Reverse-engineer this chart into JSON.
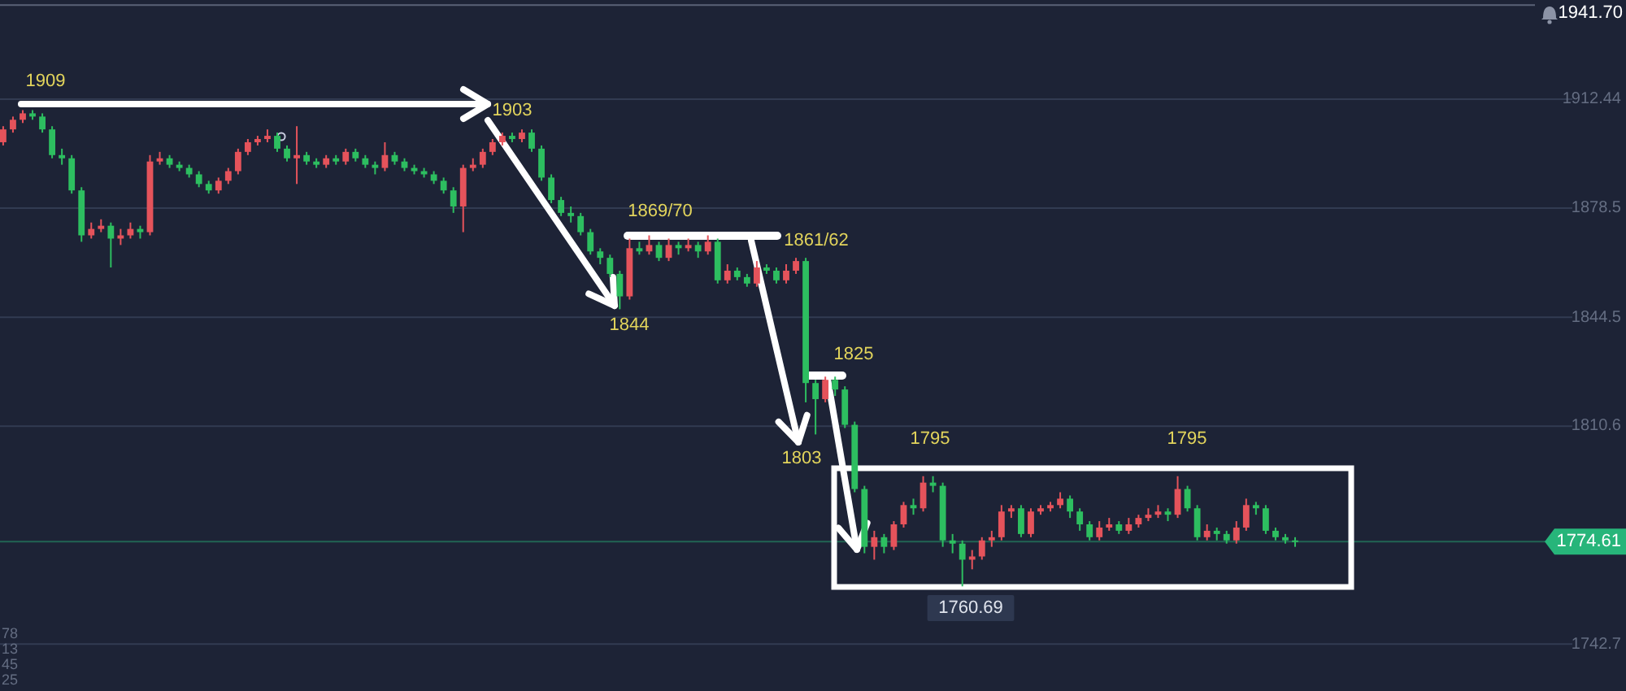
{
  "chart_data": {
    "type": "candlestick",
    "categories": [
      null,
      null,
      null,
      null,
      null,
      null,
      null,
      null,
      null,
      null,
      null,
      null,
      null,
      null,
      null,
      null,
      null,
      null,
      null,
      null,
      null,
      null,
      null,
      null,
      null,
      null,
      null,
      null,
      null,
      null,
      null,
      null,
      null,
      null,
      null,
      null,
      null,
      null,
      null,
      null,
      null,
      null,
      null,
      null,
      null,
      null,
      null,
      null,
      null,
      null,
      null,
      null,
      null,
      null,
      null,
      null,
      null,
      null,
      null,
      null,
      null,
      null,
      null,
      null,
      null,
      null,
      null,
      null,
      null,
      null,
      null,
      null,
      null,
      null,
      null,
      null,
      null,
      null,
      null,
      null,
      null,
      null,
      null,
      null,
      null,
      null,
      null,
      null,
      null,
      null,
      null,
      null,
      null,
      null,
      null,
      null,
      null,
      null,
      null,
      null,
      null,
      null,
      null,
      null,
      null,
      null,
      null,
      null,
      null,
      null,
      null,
      null,
      null,
      null,
      null,
      null,
      null,
      null,
      null,
      null,
      null,
      null,
      null,
      null,
      null,
      null,
      null,
      null,
      null,
      null,
      null,
      null,
      null,
      null,
      null,
      null,
      null,
      null,
      null,
      null,
      null,
      null,
      null,
      null,
      null,
      null,
      null,
      null,
      null,
      null,
      null,
      null,
      null,
      null,
      null,
      null,
      null,
      null,
      null,
      null,
      null
    ],
    "ohlc": [
      [
        1899,
        1904,
        1898,
        1903
      ],
      [
        1903,
        1907,
        1902,
        1906
      ],
      [
        1906,
        1909,
        1905,
        1908
      ],
      [
        1908,
        1909,
        1906,
        1907
      ],
      [
        1907,
        1908,
        1902,
        1903
      ],
      [
        1903,
        1904,
        1894,
        1895
      ],
      [
        1895,
        1897,
        1892,
        1894
      ],
      [
        1894,
        1895,
        1883,
        1884
      ],
      [
        1884,
        1885,
        1868,
        1870
      ],
      [
        1870,
        1874,
        1869,
        1872
      ],
      [
        1872,
        1875,
        1871,
        1873
      ],
      [
        1873,
        1874,
        1860,
        1869
      ],
      [
        1869,
        1872,
        1867,
        1870
      ],
      [
        1870,
        1874,
        1869,
        1872
      ],
      [
        1872,
        1873,
        1869,
        1871
      ],
      [
        1871,
        1895,
        1870,
        1893
      ],
      [
        1893,
        1896,
        1892,
        1894
      ],
      [
        1894,
        1895,
        1891,
        1892
      ],
      [
        1892,
        1893,
        1890,
        1891
      ],
      [
        1891,
        1892,
        1888,
        1889
      ],
      [
        1889,
        1890,
        1885,
        1886
      ],
      [
        1886,
        1887,
        1883,
        1884
      ],
      [
        1884,
        1888,
        1883,
        1887
      ],
      [
        1887,
        1891,
        1886,
        1890
      ],
      [
        1890,
        1897,
        1889,
        1896
      ],
      [
        1896,
        1900,
        1895,
        1899
      ],
      [
        1899,
        1901,
        1898,
        1900
      ],
      [
        1900,
        1903,
        1899,
        1901
      ],
      [
        1901,
        1902,
        1896,
        1897
      ],
      [
        1897,
        1898,
        1893,
        1894
      ],
      [
        1894,
        1904,
        1886,
        1895
      ],
      [
        1895,
        1896,
        1892,
        1893
      ],
      [
        1893,
        1894,
        1891,
        1892
      ],
      [
        1892,
        1895,
        1891,
        1894
      ],
      [
        1894,
        1895,
        1892,
        1893
      ],
      [
        1893,
        1897,
        1892,
        1896
      ],
      [
        1896,
        1897,
        1893,
        1894
      ],
      [
        1894,
        1895,
        1891,
        1892
      ],
      [
        1892,
        1893,
        1889,
        1891
      ],
      [
        1891,
        1899,
        1890,
        1895
      ],
      [
        1895,
        1896,
        1892,
        1893
      ],
      [
        1893,
        1894,
        1890,
        1891
      ],
      [
        1891,
        1892,
        1889,
        1890
      ],
      [
        1890,
        1891,
        1888,
        1889
      ],
      [
        1889,
        1890,
        1886,
        1887
      ],
      [
        1887,
        1888,
        1883,
        1884
      ],
      [
        1884,
        1885,
        1877,
        1879
      ],
      [
        1879,
        1892,
        1871,
        1891
      ],
      [
        1891,
        1894,
        1890,
        1892
      ],
      [
        1892,
        1897,
        1891,
        1896
      ],
      [
        1896,
        1900,
        1895,
        1899
      ],
      [
        1899,
        1902,
        1898,
        1901
      ],
      [
        1901,
        1902,
        1899,
        1900
      ],
      [
        1900,
        1903,
        1899,
        1902
      ],
      [
        1902,
        1903,
        1896,
        1897
      ],
      [
        1897,
        1898,
        1887,
        1888
      ],
      [
        1888,
        1889,
        1880,
        1881
      ],
      [
        1881,
        1882,
        1876,
        1877
      ],
      [
        1877,
        1879,
        1874,
        1876
      ],
      [
        1876,
        1877,
        1870,
        1871
      ],
      [
        1871,
        1872,
        1864,
        1865
      ],
      [
        1865,
        1866,
        1861,
        1863
      ],
      [
        1863,
        1864,
        1857,
        1858
      ],
      [
        1858,
        1859,
        1847,
        1851
      ],
      [
        1851,
        1869,
        1850,
        1866
      ],
      [
        1866,
        1868,
        1864,
        1865
      ],
      [
        1865,
        1870,
        1864,
        1867
      ],
      [
        1867,
        1868,
        1862,
        1863
      ],
      [
        1863,
        1869,
        1862,
        1867
      ],
      [
        1867,
        1868,
        1864,
        1866
      ],
      [
        1866,
        1869,
        1865,
        1867
      ],
      [
        1867,
        1868,
        1863,
        1865
      ],
      [
        1865,
        1870,
        1864,
        1868
      ],
      [
        1868,
        1869,
        1855,
        1856
      ],
      [
        1856,
        1861,
        1855,
        1859
      ],
      [
        1859,
        1860,
        1856,
        1857
      ],
      [
        1857,
        1858,
        1854,
        1855
      ],
      [
        1855,
        1862,
        1854,
        1860
      ],
      [
        1860,
        1861,
        1858,
        1859
      ],
      [
        1859,
        1860,
        1855,
        1856
      ],
      [
        1856,
        1861,
        1855,
        1859
      ],
      [
        1859,
        1863,
        1858,
        1862
      ],
      [
        1862,
        1863,
        1818,
        1824
      ],
      [
        1824,
        1825,
        1808,
        1819
      ],
      [
        1819,
        1826,
        1818,
        1825
      ],
      [
        1825,
        1826,
        1820,
        1822
      ],
      [
        1822,
        1823,
        1810,
        1811
      ],
      [
        1811,
        1812,
        1790,
        1791
      ],
      [
        1791,
        1792,
        1771,
        1773
      ],
      [
        1773,
        1778,
        1769,
        1776
      ],
      [
        1776,
        1777,
        1771,
        1773
      ],
      [
        1773,
        1781,
        1772,
        1780
      ],
      [
        1780,
        1787,
        1779,
        1786
      ],
      [
        1786,
        1788,
        1783,
        1785
      ],
      [
        1785,
        1795,
        1784,
        1793
      ],
      [
        1793,
        1795,
        1790,
        1792
      ],
      [
        1792,
        1793,
        1773,
        1775
      ],
      [
        1775,
        1777,
        1771,
        1774
      ],
      [
        1774,
        1775,
        1760.69,
        1769
      ],
      [
        1769,
        1772,
        1766,
        1770
      ],
      [
        1770,
        1776,
        1769,
        1775
      ],
      [
        1775,
        1778,
        1773,
        1776
      ],
      [
        1776,
        1786,
        1775,
        1784
      ],
      [
        1784,
        1786,
        1782,
        1785
      ],
      [
        1785,
        1786,
        1776,
        1777
      ],
      [
        1777,
        1785,
        1776,
        1784
      ],
      [
        1784,
        1786,
        1783,
        1785
      ],
      [
        1785,
        1787,
        1784,
        1786
      ],
      [
        1786,
        1790,
        1785,
        1788
      ],
      [
        1788,
        1789,
        1782,
        1784
      ],
      [
        1784,
        1785,
        1778,
        1780
      ],
      [
        1780,
        1781,
        1775,
        1776
      ],
      [
        1776,
        1781,
        1775,
        1779
      ],
      [
        1779,
        1782,
        1778,
        1780
      ],
      [
        1780,
        1781,
        1777,
        1778
      ],
      [
        1778,
        1782,
        1777,
        1780
      ],
      [
        1780,
        1783,
        1779,
        1782
      ],
      [
        1782,
        1785,
        1781,
        1783
      ],
      [
        1783,
        1786,
        1782,
        1784
      ],
      [
        1784,
        1785,
        1781,
        1783
      ],
      [
        1783,
        1795,
        1782,
        1791
      ],
      [
        1791,
        1792,
        1784,
        1785
      ],
      [
        1785,
        1786,
        1775,
        1776
      ],
      [
        1776,
        1780,
        1775,
        1778
      ],
      [
        1778,
        1779,
        1775,
        1777
      ],
      [
        1777,
        1778,
        1774,
        1775
      ],
      [
        1775,
        1781,
        1774,
        1779
      ],
      [
        1779,
        1788,
        1778,
        1786
      ],
      [
        1786,
        1787,
        1783,
        1785
      ],
      [
        1785,
        1786,
        1777,
        1778
      ],
      [
        1778,
        1779,
        1775,
        1776
      ],
      [
        1776,
        1777,
        1774,
        1775
      ],
      [
        1775,
        1776,
        1773,
        1774.61
      ],
      null,
      null,
      null,
      null,
      null,
      null,
      null,
      null,
      null,
      null,
      null,
      null,
      null,
      null,
      null,
      null,
      null,
      null,
      null,
      null,
      null,
      null,
      null,
      null,
      null,
      null,
      null,
      null
    ],
    "colors": [
      "#e5535b",
      "#e5535b",
      "#e5535b",
      "#2dbe60",
      "#2dbe60",
      "#2dbe60",
      "#2dbe60",
      "#2dbe60",
      "#2dbe60",
      "#e5535b",
      "#e5535b",
      "#2dbe60",
      "#e5535b",
      "#e5535b",
      "#2dbe60",
      "#e5535b",
      "#e5535b",
      "#2dbe60",
      "#2dbe60",
      "#2dbe60",
      "#2dbe60",
      "#2dbe60",
      "#e5535b",
      "#e5535b",
      "#e5535b",
      "#e5535b",
      "#e5535b",
      "#e5535b",
      "#2dbe60",
      "#2dbe60",
      "#e5535b",
      "#2dbe60",
      "#2dbe60",
      "#e5535b",
      "#2dbe60",
      "#e5535b",
      "#2dbe60",
      "#2dbe60",
      "#2dbe60",
      "#e5535b",
      "#2dbe60",
      "#2dbe60",
      "#2dbe60",
      "#2dbe60",
      "#2dbe60",
      "#2dbe60",
      "#2dbe60",
      "#e5535b",
      "#e5535b",
      "#e5535b",
      "#e5535b",
      "#e5535b",
      "#2dbe60",
      "#e5535b",
      "#2dbe60",
      "#2dbe60",
      "#2dbe60",
      "#2dbe60",
      "#2dbe60",
      "#2dbe60",
      "#2dbe60",
      "#2dbe60",
      "#2dbe60",
      "#2dbe60",
      "#e5535b",
      "#2dbe60",
      "#e5535b",
      "#2dbe60",
      "#e5535b",
      "#2dbe60",
      "#e5535b",
      "#2dbe60",
      "#e5535b",
      "#2dbe60",
      "#e5535b",
      "#2dbe60",
      "#2dbe60",
      "#e5535b",
      "#2dbe60",
      "#2dbe60",
      "#e5535b",
      "#e5535b",
      "#2dbe60",
      "#2dbe60",
      "#e5535b",
      "#2dbe60",
      "#2dbe60",
      "#2dbe60",
      "#2dbe60",
      "#e5535b",
      "#2dbe60",
      "#e5535b",
      "#e5535b",
      "#2dbe60",
      "#e5535b",
      "#2dbe60",
      "#2dbe60",
      "#2dbe60",
      "#2dbe60",
      "#e5535b",
      "#e5535b",
      "#e5535b",
      "#e5535b",
      "#e5535b",
      "#2dbe60",
      "#e5535b",
      "#e5535b",
      "#e5535b",
      "#e5535b",
      "#2dbe60",
      "#2dbe60",
      "#2dbe60",
      "#e5535b",
      "#e5535b",
      "#2dbe60",
      "#e5535b",
      "#e5535b",
      "#e5535b",
      "#e5535b",
      "#2dbe60",
      "#e5535b",
      "#2dbe60",
      "#2dbe60",
      "#e5535b",
      "#2dbe60",
      "#2dbe60",
      "#e5535b",
      "#e5535b",
      "#2dbe60",
      "#2dbe60",
      "#2dbe60",
      "#2dbe60",
      "#2dbe60",
      null,
      null,
      null,
      null,
      null,
      null,
      null,
      null,
      null,
      null,
      null,
      null,
      null,
      null,
      null,
      null,
      null,
      null,
      null,
      null,
      null,
      null,
      null,
      null,
      null,
      null,
      null,
      null
    ],
    "ylim": [
      1728.1,
      1943.3
    ],
    "yticks": [
      1912.44,
      1878.5,
      1844.5,
      1810.6,
      1742.7
    ],
    "grid": "y",
    "tick_labels": "y",
    "ref_lines": [
      {
        "axis": "y",
        "value": 1941.7,
        "label": "1941.70"
      },
      {
        "axis": "y",
        "value": 1774.61,
        "label": "1774.61",
        "color": "#27b57a"
      }
    ],
    "annotations": [
      "1909",
      "1903",
      "1869/70",
      "1861/62",
      "1844",
      "1825",
      "1803",
      "1795",
      "1795",
      "1760.69",
      "78",
      "13",
      "45",
      "25"
    ]
  }
}
